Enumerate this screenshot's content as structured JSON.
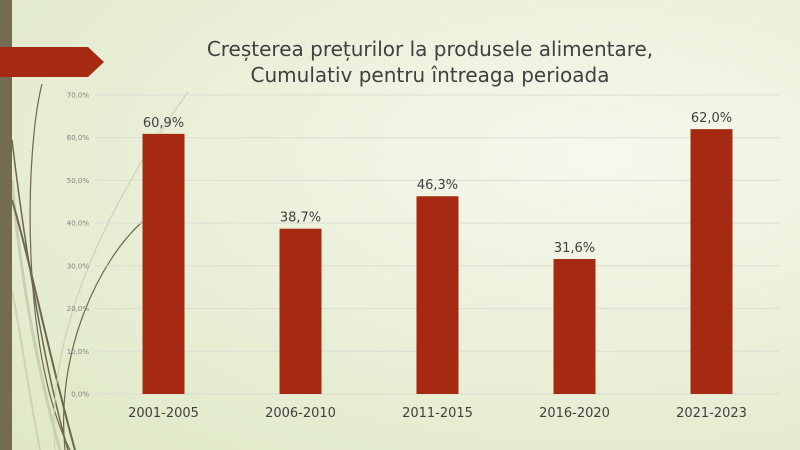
{
  "colors": {
    "bar": "#a52a11",
    "sidebar": "#736b52",
    "arrow": "#a52a11",
    "grid": "#dcdcd4"
  },
  "chart_data": {
    "type": "bar",
    "title": [
      "Creșterea prețurilor la produsele alimentare,",
      "Cumulativ pentru întreaga perioada"
    ],
    "categories": [
      "2001-2005",
      "2006-2010",
      "2011-2015",
      "2016-2020",
      "2021-2023"
    ],
    "values": [
      60.9,
      38.7,
      46.3,
      31.6,
      62.0
    ],
    "data_labels": [
      "60,9%",
      "38,7%",
      "46,3%",
      "31,6%",
      "62,0%"
    ],
    "y_ticks": [
      0,
      10,
      20,
      30,
      40,
      50,
      60,
      70
    ],
    "y_tick_labels": [
      "0,0%",
      "10,0%",
      "20,0%",
      "30,0%",
      "40,0%",
      "50,0%",
      "60,0%",
      "70,0%"
    ],
    "ylim": [
      0,
      70
    ],
    "xlabel": "",
    "ylabel": "",
    "grid": true,
    "legend": "none"
  }
}
